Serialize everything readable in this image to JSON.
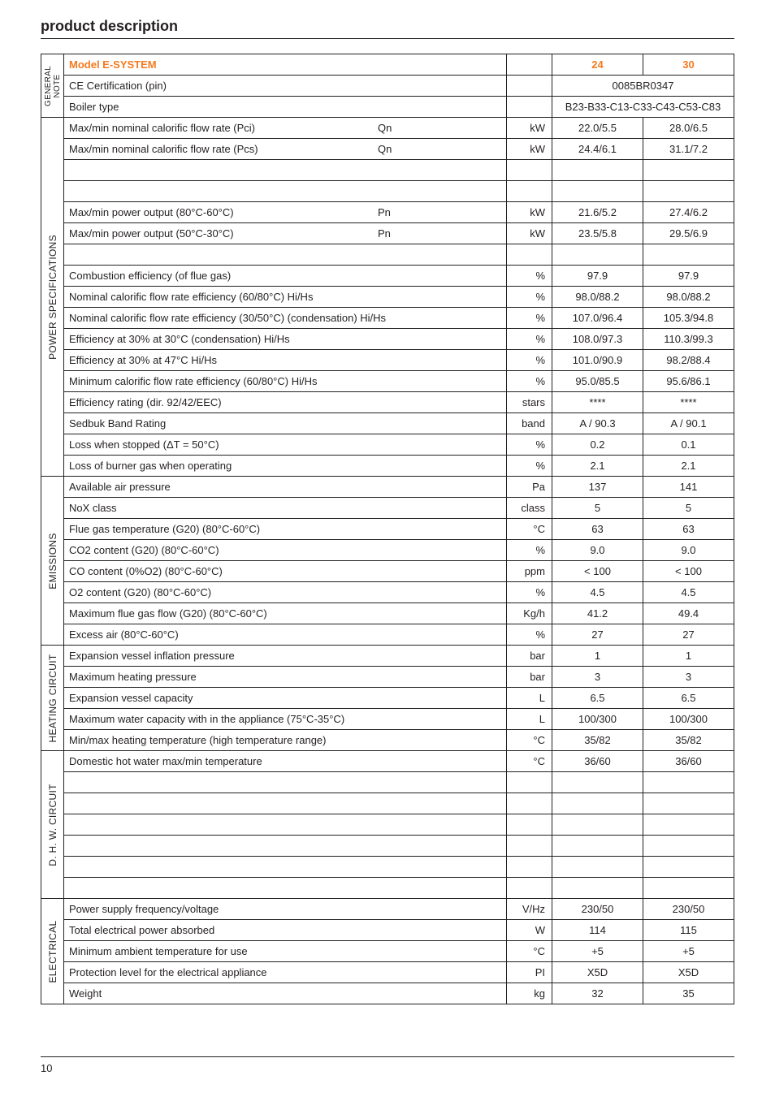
{
  "title": "product description",
  "header": {
    "model_label": "Model  E-SYSTEM",
    "col24": "24",
    "col30": "30"
  },
  "general": {
    "cat": "GENERAL NOTE",
    "rows": [
      {
        "label": "CE Certification (pin)",
        "unit": "",
        "merged": "0085BR0347"
      },
      {
        "label": "Boiler type",
        "unit": "",
        "merged": "B23-B33-C13-C33-C43-C53-C83"
      }
    ]
  },
  "power": {
    "cat": "POWER SPECIFICATIONS",
    "rows": [
      {
        "label": "Max/min nominal calorific flow rate (Pci)",
        "sym": "Qn",
        "unit": "kW",
        "v24": "22.0/5.5",
        "v30": "28.0/6.5"
      },
      {
        "label": "Max/min nominal calorific flow rate (Pcs)",
        "sym": "Qn",
        "unit": "kW",
        "v24": "24.4/6.1",
        "v30": "31.1/7.2"
      },
      {
        "blank": true
      },
      {
        "blank": true
      },
      {
        "label": "Max/min power output (80°C-60°C)",
        "sym": "Pn",
        "unit": "kW",
        "v24": "21.6/5.2",
        "v30": "27.4/6.2"
      },
      {
        "label": "Max/min power output (50°C-30°C)",
        "sym": "Pn",
        "unit": "kW",
        "v24": "23.5/5.8",
        "v30": "29.5/6.9"
      },
      {
        "blank": true
      },
      {
        "label": "Combustion efficiency (of flue gas)",
        "unit": "%",
        "v24": "97.9",
        "v30": "97.9"
      },
      {
        "label": "Nominal calorific flow rate efficiency (60/80°C) Hi/Hs",
        "unit": "%",
        "v24": "98.0/88.2",
        "v30": "98.0/88.2"
      },
      {
        "label": "Nominal calorific flow rate efficiency (30/50°C) (condensation) Hi/Hs",
        "unit": "%",
        "v24": "107.0/96.4",
        "v30": "105.3/94.8"
      },
      {
        "label": "Efficiency at 30% at 30°C (condensation) Hi/Hs",
        "unit": "%",
        "v24": "108.0/97.3",
        "v30": "110.3/99.3"
      },
      {
        "label": "Efficiency at 30% at 47°C Hi/Hs",
        "unit": "%",
        "v24": "101.0/90.9",
        "v30": "98.2/88.4"
      },
      {
        "label": "Minimum calorific flow rate efficiency (60/80°C) Hi/Hs",
        "unit": "%",
        "v24": "95.0/85.5",
        "v30": "95.6/86.1"
      },
      {
        "label": "Efficiency rating (dir. 92/42/EEC)",
        "unit": "stars",
        "v24": "****",
        "v30": "****"
      },
      {
        "label": "Sedbuk Band Rating",
        "unit": "band",
        "v24": "A / 90.3",
        "v30": "A / 90.1"
      },
      {
        "label": "Loss when stopped (ΔT = 50°C)",
        "unit": "%",
        "v24": "0.2",
        "v30": "0.1"
      },
      {
        "label": "Loss of burner gas when operating",
        "unit": "%",
        "v24": "2.1",
        "v30": "2.1"
      }
    ]
  },
  "emissions": {
    "cat": "EMISSIONS",
    "rows": [
      {
        "label": "Available air pressure",
        "unit": "Pa",
        "v24": "137",
        "v30": "141"
      },
      {
        "label": "NoX class",
        "unit": "class",
        "v24": "5",
        "v30": "5"
      },
      {
        "label": "Flue gas temperature (G20) (80°C-60°C)",
        "unit": "°C",
        "v24": "63",
        "v30": "63"
      },
      {
        "label": "CO2 content (G20) (80°C-60°C)",
        "unit": "%",
        "v24": "9.0",
        "v30": "9.0"
      },
      {
        "label": "CO content (0%O2) (80°C-60°C)",
        "unit": "ppm",
        "v24": "< 100",
        "v30": "< 100"
      },
      {
        "label": "O2 content (G20) (80°C-60°C)",
        "unit": "%",
        "v24": "4.5",
        "v30": "4.5"
      },
      {
        "label": "Maximum flue gas flow (G20) (80°C-60°C)",
        "unit": "Kg/h",
        "v24": "41.2",
        "v30": "49.4"
      },
      {
        "label": "Excess air (80°C-60°C)",
        "unit": "%",
        "v24": "27",
        "v30": "27"
      }
    ]
  },
  "heating": {
    "cat": "HEATING CIRCUIT",
    "rows": [
      {
        "label": "Expansion vessel inflation pressure",
        "unit": "bar",
        "v24": "1",
        "v30": "1"
      },
      {
        "label": "Maximum heating pressure",
        "unit": "bar",
        "v24": "3",
        "v30": "3"
      },
      {
        "label": "Expansion vessel capacity",
        "unit": "L",
        "v24": "6.5",
        "v30": "6.5"
      },
      {
        "label": "Maximum water capacity with in the appliance (75°C-35°C)",
        "unit": "L",
        "v24": "100/300",
        "v30": "100/300"
      },
      {
        "label": "Min/max heating temperature (high temperature range)",
        "unit": "°C",
        "v24": "35/82",
        "v30": "35/82"
      }
    ]
  },
  "dhw": {
    "cat": "D. H. W. CIRCUIT",
    "rows": [
      {
        "label": "Domestic hot water max/min temperature",
        "unit": "°C",
        "v24": "36/60",
        "v30": "36/60"
      },
      {
        "blank": true
      },
      {
        "blank": true
      },
      {
        "blank": true
      },
      {
        "blank": true
      },
      {
        "blank": true
      },
      {
        "blank": true
      }
    ]
  },
  "electrical": {
    "cat": "ELECTRICAL",
    "rows": [
      {
        "label": "Power supply frequency/voltage",
        "unit": "V/Hz",
        "v24": "230/50",
        "v30": "230/50"
      },
      {
        "label": "Total electrical power absorbed",
        "unit": "W",
        "v24": "114",
        "v30": "115"
      },
      {
        "label": "Minimum ambient temperature for use",
        "unit": "°C",
        "v24": "+5",
        "v30": "+5"
      },
      {
        "label": "Protection level for the electrical appliance",
        "unit": "PI",
        "v24": "X5D",
        "v30": "X5D"
      },
      {
        "label": "Weight",
        "unit": "kg",
        "v24": "32",
        "v30": "35"
      }
    ]
  },
  "page_number": "10"
}
